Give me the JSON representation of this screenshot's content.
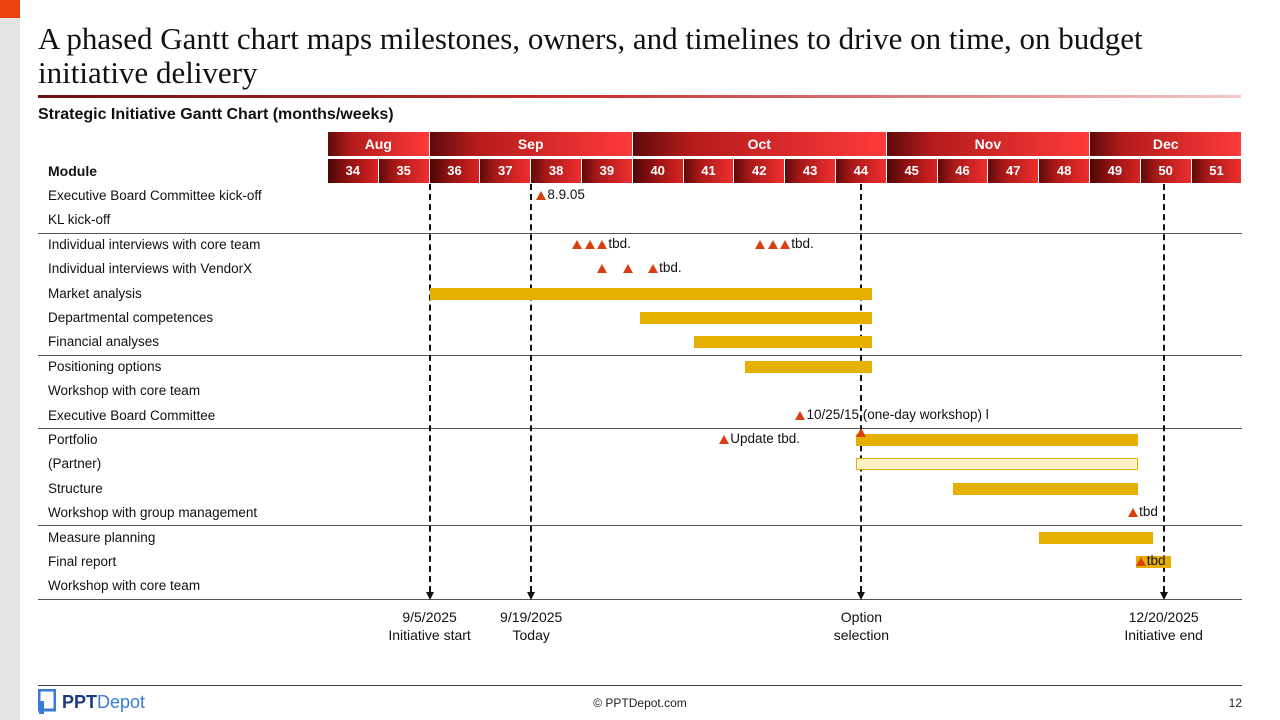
{
  "slide": {
    "title": "A phased Gantt chart maps milestones, owners, and timelines to drive on time, on budget initiative delivery",
    "subtitle": "Strategic Initiative Gantt Chart (months/weeks)",
    "footer": {
      "logo_ppt": "PPT",
      "logo_depot": "Depot",
      "copyright": "© PPTDepot.com",
      "page": "12"
    }
  },
  "chart_data": {
    "type": "gantt",
    "module_header": "Module",
    "months": [
      {
        "label": "Aug",
        "weeks": [
          "34",
          "35"
        ]
      },
      {
        "label": "Sep",
        "weeks": [
          "36",
          "37",
          "38",
          "39"
        ]
      },
      {
        "label": "Oct",
        "weeks": [
          "40",
          "41",
          "42",
          "43",
          "44"
        ]
      },
      {
        "label": "Nov",
        "weeks": [
          "45",
          "46",
          "47",
          "48"
        ]
      },
      {
        "label": "Dec",
        "weeks": [
          "49",
          "50",
          "51"
        ]
      }
    ],
    "week_range": [
      34,
      52
    ],
    "group_breaks_after_row": [
      1,
      6,
      9,
      13
    ],
    "rows": [
      {
        "label": "Executive Board Committee kick-off",
        "tasks": [],
        "milestones": [
          {
            "weeks": [
              38.2
            ],
            "label": "8.9.05"
          }
        ]
      },
      {
        "label": "KL kick-off",
        "tasks": [],
        "milestones": []
      },
      {
        "label": "Individual interviews with core team",
        "tasks": [],
        "milestones": [
          {
            "weeks": [
              38.9,
              39.15,
              39.4
            ],
            "label": "tbd."
          },
          {
            "weeks": [
              42.5,
              42.75,
              43.0
            ],
            "label": "tbd."
          }
        ]
      },
      {
        "label": "Individual interviews with VendorX",
        "tasks": [],
        "milestones": [
          {
            "weeks": [
              39.4,
              39.9,
              40.4
            ],
            "label": "tbd."
          }
        ]
      },
      {
        "label": "Market analysis",
        "tasks": [
          {
            "start": 36.0,
            "end": 44.7
          }
        ],
        "milestones": []
      },
      {
        "label": "Departmental competences",
        "tasks": [
          {
            "start": 40.15,
            "end": 44.7
          }
        ],
        "milestones": []
      },
      {
        "label": "Financial analyses",
        "tasks": [
          {
            "start": 41.2,
            "end": 44.7
          }
        ],
        "milestones": []
      },
      {
        "label": "Positioning options",
        "tasks": [
          {
            "start": 42.2,
            "end": 44.7
          }
        ],
        "milestones": []
      },
      {
        "label": "Workshop with core team",
        "tasks": [],
        "milestones": []
      },
      {
        "label": "Executive Board Committee",
        "tasks": [],
        "milestones": [
          {
            "weeks": [
              43.3
            ],
            "label": "10/25/15 (one-day workshop) l"
          }
        ]
      },
      {
        "label": "Portfolio",
        "tasks": [
          {
            "start": 44.4,
            "end": 49.95
          }
        ],
        "milestones": [
          {
            "weeks": [
              41.8
            ],
            "label": "Update tbd."
          }
        ]
      },
      {
        "label": "(Partner)",
        "tasks": [
          {
            "start": 44.4,
            "end": 49.95,
            "style": "hollow"
          }
        ],
        "milestones": []
      },
      {
        "label": "Structure",
        "tasks": [
          {
            "start": 46.3,
            "end": 49.95
          }
        ],
        "milestones": []
      },
      {
        "label": "Workshop with group management",
        "tasks": [],
        "milestones": [
          {
            "weeks": [
              49.85
            ],
            "label": "tbd"
          }
        ]
      },
      {
        "label": "Measure planning",
        "tasks": [
          {
            "start": 48.0,
            "end": 50.25
          }
        ],
        "milestones": []
      },
      {
        "label": "Final report",
        "tasks": [
          {
            "start": 49.9,
            "end": 50.6
          }
        ],
        "milestones": [
          {
            "weeks": [
              50.0
            ],
            "label": "tbd"
          }
        ]
      },
      {
        "label": "Workshop with core team",
        "tasks": [],
        "milestones": []
      }
    ],
    "markers": [
      {
        "week": 36.0,
        "date": "9/5/2025",
        "label": "Initiative start"
      },
      {
        "week": 38.0,
        "date": "9/19/2025",
        "label": "Today"
      },
      {
        "week": 44.5,
        "date": "Option",
        "label": "selection"
      },
      {
        "week": 50.45,
        "date": "12/20/2025",
        "label": "Initiative end"
      }
    ],
    "option_selection_milestone_week": 44.5
  }
}
